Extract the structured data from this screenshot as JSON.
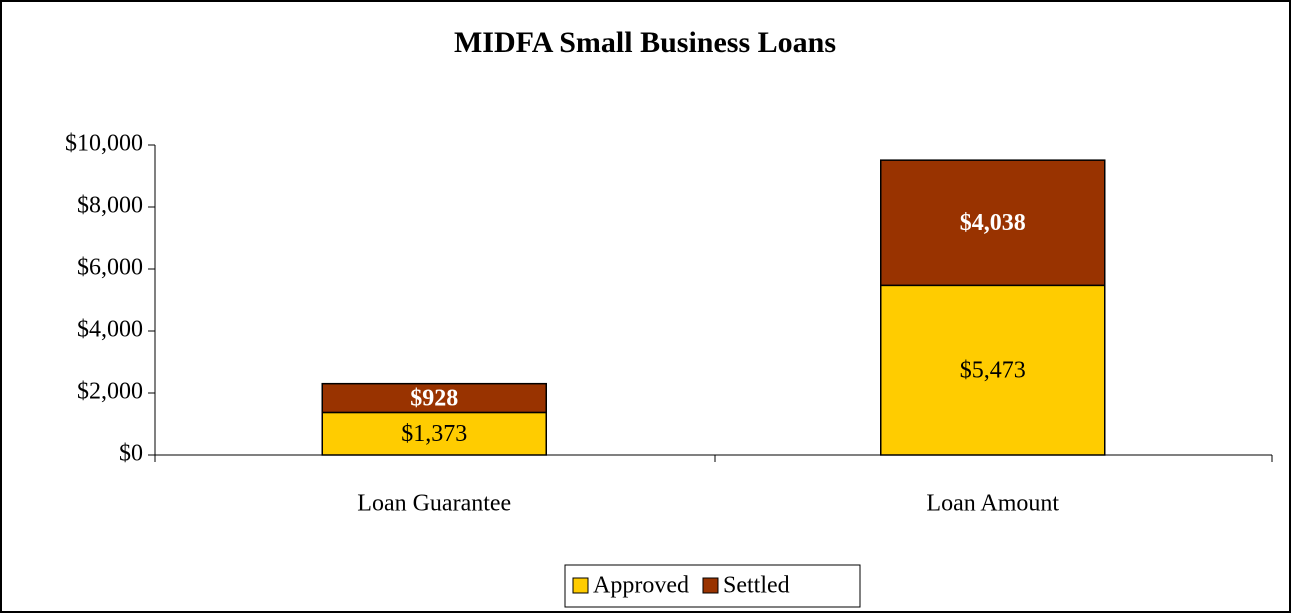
{
  "chart_data": {
    "type": "stacked_bar",
    "title": "MIDFA Small Business Loans",
    "categories": [
      "Loan Guarantee",
      "Loan Amount"
    ],
    "series": [
      {
        "name": "Approved",
        "color": "#ffcc00",
        "values": [
          1373,
          5473
        ],
        "value_labels": [
          "$1,373",
          "$5,473"
        ]
      },
      {
        "name": "Settled",
        "color": "#993300",
        "values": [
          928,
          4038
        ],
        "value_labels": [
          "$928",
          "$4,038"
        ]
      }
    ],
    "ylim": [
      0,
      10000
    ],
    "yticks": [
      {
        "value": 0,
        "label": "$0"
      },
      {
        "value": 2000,
        "label": "$2,000"
      },
      {
        "value": 4000,
        "label": "$4,000"
      },
      {
        "value": 6000,
        "label": "$6,000"
      },
      {
        "value": 8000,
        "label": "$8,000"
      },
      {
        "value": 10000,
        "label": "$10,000"
      }
    ],
    "legend": "bottom"
  }
}
